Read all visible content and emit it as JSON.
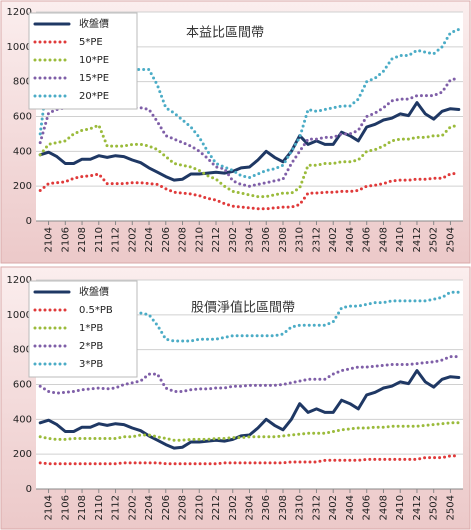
{
  "chart_data": [
    {
      "type": "line",
      "title": "本益比區間帶",
      "categories": [
        null,
        "2104",
        null,
        "2106",
        null,
        "2108",
        null,
        "2110",
        null,
        "2112",
        null,
        "2202",
        null,
        "2204",
        null,
        "2206",
        null,
        "2208",
        null,
        "2210",
        null,
        "2212",
        null,
        "2302",
        null,
        "2304",
        null,
        "2306",
        null,
        "2308",
        null,
        "2310",
        null,
        "2312",
        null,
        "2402",
        null,
        "2404",
        null,
        "2406",
        null,
        "2408",
        null,
        "2410",
        null,
        "2412",
        null,
        "2502",
        null,
        "2504",
        null
      ],
      "ylim": [
        0,
        1200
      ],
      "yticks": [
        0,
        200,
        400,
        600,
        800,
        1000,
        1200
      ],
      "grid": true,
      "legend": "top-left",
      "series": [
        {
          "name": "收盤價",
          "color": "#1f3864",
          "style": "solid",
          "values": [
            380,
            395,
            370,
            330,
            330,
            355,
            355,
            375,
            365,
            375,
            370,
            350,
            335,
            305,
            280,
            255,
            235,
            240,
            270,
            270,
            275,
            280,
            275,
            285,
            305,
            310,
            350,
            400,
            365,
            340,
            400,
            490,
            440,
            460,
            440,
            440,
            510,
            490,
            460,
            540,
            555,
            580,
            590,
            615,
            605,
            680,
            615,
            585,
            630,
            645,
            640
          ]
        },
        {
          "name": "5*PE",
          "color": "#e03a3a",
          "style": "dotted",
          "values": [
            175,
            215,
            220,
            225,
            245,
            255,
            260,
            270,
            215,
            215,
            215,
            220,
            220,
            215,
            210,
            185,
            165,
            160,
            155,
            145,
            130,
            120,
            100,
            85,
            80,
            75,
            70,
            70,
            75,
            80,
            80,
            95,
            160,
            160,
            165,
            165,
            170,
            170,
            175,
            200,
            205,
            215,
            230,
            235,
            235,
            240,
            240,
            245,
            245,
            270,
            275
          ]
        },
        {
          "name": "10*PE",
          "color": "#9bbb3b",
          "style": "dotted",
          "values": [
            380,
            440,
            450,
            460,
            500,
            520,
            530,
            550,
            430,
            430,
            430,
            440,
            440,
            430,
            410,
            370,
            330,
            320,
            310,
            290,
            260,
            240,
            200,
            170,
            160,
            150,
            140,
            140,
            150,
            160,
            160,
            190,
            320,
            320,
            330,
            330,
            340,
            340,
            350,
            400,
            410,
            430,
            460,
            470,
            470,
            480,
            480,
            490,
            490,
            540,
            550
          ]
        },
        {
          "name": "15*PE",
          "color": "#7f5fa8",
          "style": "dotted",
          "values": [
            450,
            620,
            640,
            650,
            660,
            660,
            660,
            660,
            650,
            650,
            660,
            650,
            650,
            640,
            570,
            490,
            470,
            450,
            430,
            400,
            360,
            310,
            300,
            230,
            210,
            200,
            210,
            220,
            230,
            240,
            330,
            400,
            470,
            470,
            480,
            480,
            500,
            500,
            520,
            600,
            620,
            650,
            690,
            700,
            700,
            720,
            720,
            720,
            740,
            810,
            820
          ]
        },
        {
          "name": "20*PE",
          "color": "#4bacc6",
          "style": "dotted",
          "values": [
            500,
            870,
            870,
            870,
            870,
            870,
            870,
            870,
            870,
            870,
            870,
            870,
            870,
            870,
            780,
            650,
            620,
            580,
            540,
            480,
            400,
            330,
            310,
            290,
            260,
            250,
            270,
            290,
            300,
            320,
            400,
            480,
            640,
            630,
            640,
            650,
            660,
            660,
            700,
            800,
            820,
            860,
            930,
            950,
            950,
            980,
            970,
            960,
            1000,
            1080,
            1100
          ]
        }
      ]
    },
    {
      "type": "line",
      "title": "股價淨值比區間帶",
      "categories": [
        null,
        "2104",
        null,
        "2106",
        null,
        "2108",
        null,
        "2110",
        null,
        "2112",
        null,
        "2202",
        null,
        "2204",
        null,
        "2206",
        null,
        "2208",
        null,
        "2210",
        null,
        "2212",
        null,
        "2302",
        null,
        "2304",
        null,
        "2306",
        null,
        "2308",
        null,
        "2310",
        null,
        "2312",
        null,
        "2402",
        null,
        "2404",
        null,
        "2406",
        null,
        "2408",
        null,
        "2410",
        null,
        "2412",
        null,
        "2502",
        null,
        "2504",
        null
      ],
      "ylim": [
        0,
        1200
      ],
      "yticks": [
        0,
        200,
        400,
        600,
        800,
        1000,
        1200
      ],
      "grid": true,
      "legend": "top-left",
      "series": [
        {
          "name": "收盤價",
          "color": "#1f3864",
          "style": "solid",
          "values": [
            380,
            395,
            370,
            330,
            330,
            355,
            355,
            375,
            365,
            375,
            370,
            350,
            335,
            305,
            280,
            255,
            235,
            240,
            270,
            270,
            275,
            280,
            275,
            285,
            305,
            310,
            350,
            400,
            365,
            340,
            400,
            490,
            440,
            460,
            440,
            440,
            510,
            490,
            460,
            540,
            555,
            580,
            590,
            615,
            605,
            680,
            615,
            585,
            630,
            645,
            640
          ]
        },
        {
          "name": "0.5*PB",
          "color": "#e03a3a",
          "style": "dotted",
          "values": [
            150,
            145,
            145,
            145,
            145,
            145,
            145,
            145,
            145,
            145,
            150,
            150,
            150,
            150,
            150,
            145,
            145,
            145,
            145,
            145,
            145,
            145,
            150,
            150,
            150,
            150,
            150,
            150,
            150,
            150,
            155,
            155,
            155,
            155,
            165,
            165,
            165,
            165,
            165,
            170,
            170,
            170,
            170,
            170,
            170,
            170,
            180,
            180,
            180,
            190,
            190
          ]
        },
        {
          "name": "1*PB",
          "color": "#9bbb3b",
          "style": "dotted",
          "values": [
            300,
            290,
            285,
            285,
            290,
            290,
            290,
            290,
            290,
            290,
            300,
            300,
            310,
            310,
            300,
            290,
            280,
            280,
            285,
            285,
            285,
            290,
            290,
            295,
            295,
            300,
            300,
            300,
            300,
            305,
            310,
            315,
            320,
            320,
            320,
            330,
            340,
            345,
            350,
            350,
            355,
            355,
            360,
            360,
            360,
            360,
            365,
            370,
            375,
            380,
            380
          ]
        },
        {
          "name": "2*PB",
          "color": "#7f5fa8",
          "style": "dotted",
          "values": [
            590,
            560,
            550,
            555,
            560,
            570,
            575,
            580,
            575,
            580,
            600,
            610,
            620,
            660,
            660,
            580,
            560,
            560,
            570,
            575,
            575,
            580,
            580,
            590,
            590,
            595,
            595,
            595,
            595,
            600,
            610,
            620,
            630,
            630,
            630,
            660,
            680,
            690,
            700,
            700,
            705,
            710,
            715,
            715,
            715,
            720,
            725,
            730,
            740,
            760,
            760
          ]
        },
        {
          "name": "3*PB",
          "color": "#4bacc6",
          "style": "dotted",
          "values": [
            900,
            880,
            880,
            890,
            900,
            910,
            920,
            930,
            940,
            950,
            980,
            1000,
            1010,
            1000,
            940,
            860,
            850,
            850,
            850,
            860,
            860,
            860,
            870,
            880,
            880,
            880,
            880,
            880,
            880,
            890,
            930,
            940,
            940,
            940,
            940,
            960,
            1040,
            1050,
            1050,
            1060,
            1070,
            1070,
            1080,
            1080,
            1080,
            1080,
            1080,
            1090,
            1100,
            1130,
            1130
          ]
        }
      ]
    }
  ]
}
